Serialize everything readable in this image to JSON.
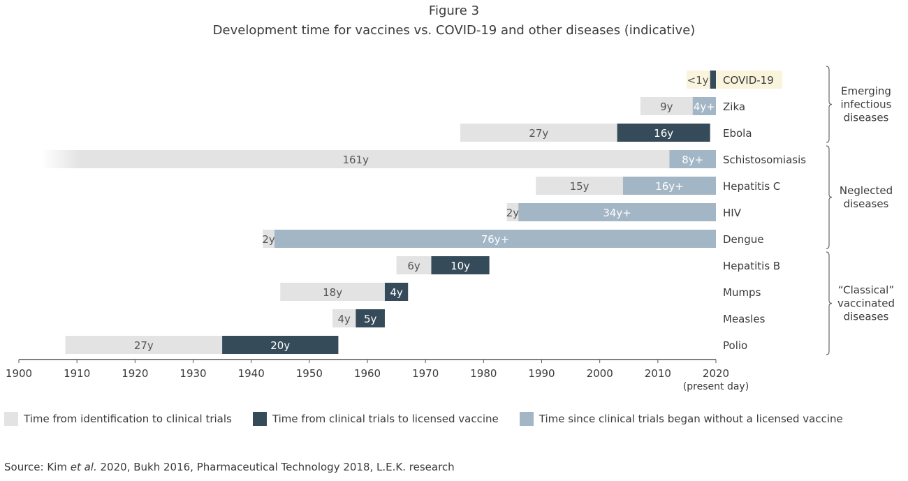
{
  "figure_label": "Figure 3",
  "chart_data": {
    "type": "bar",
    "orientation": "horizontal-stacked-timeline",
    "title": "Development time for vaccines vs. COVID-19 and other diseases (indicative)",
    "xlim": [
      1900,
      2020
    ],
    "xticks": [
      1900,
      1910,
      1920,
      1930,
      1940,
      1950,
      1960,
      1970,
      1980,
      1990,
      2000,
      2010,
      2020
    ],
    "xtick_note": "(present day)",
    "grid": false,
    "colors": {
      "identification": "#e3e3e3",
      "clinical": "#354b5a",
      "ongoing": "#a3b6c6",
      "highlight": "#fbf4dc"
    },
    "rows": [
      {
        "disease": "COVID-19",
        "highlight": true,
        "segments": [
          {
            "kind": "clinical",
            "start": 2019,
            "end": 2020,
            "label": "<1y"
          }
        ]
      },
      {
        "disease": "Zika",
        "segments": [
          {
            "kind": "identification",
            "start": 2007,
            "end": 2016,
            "label": "9y"
          },
          {
            "kind": "ongoing",
            "start": 2016,
            "end": 2020,
            "label": "4y+"
          }
        ]
      },
      {
        "disease": "Ebola",
        "segments": [
          {
            "kind": "identification",
            "start": 1976,
            "end": 2003,
            "label": "27y"
          },
          {
            "kind": "clinical",
            "start": 2003,
            "end": 2019,
            "label": "16y"
          }
        ]
      },
      {
        "disease": "Schistosomiasis",
        "segments": [
          {
            "kind": "identification",
            "start": 1851,
            "end": 2012,
            "label": "161y"
          },
          {
            "kind": "ongoing",
            "start": 2012,
            "end": 2020,
            "label": "8y+"
          }
        ]
      },
      {
        "disease": "Hepatitis C",
        "segments": [
          {
            "kind": "identification",
            "start": 1989,
            "end": 2004,
            "label": "15y"
          },
          {
            "kind": "ongoing",
            "start": 2004,
            "end": 2020,
            "label": "16y+"
          }
        ]
      },
      {
        "disease": "HIV",
        "segments": [
          {
            "kind": "identification",
            "start": 1984,
            "end": 1986,
            "label": "2y"
          },
          {
            "kind": "ongoing",
            "start": 1986,
            "end": 2020,
            "label": "34y+"
          }
        ]
      },
      {
        "disease": "Dengue",
        "segments": [
          {
            "kind": "identification",
            "start": 1942,
            "end": 1944,
            "label": "2y"
          },
          {
            "kind": "ongoing",
            "start": 1944,
            "end": 2020,
            "label": "76y+"
          }
        ]
      },
      {
        "disease": "Hepatitis B",
        "segments": [
          {
            "kind": "identification",
            "start": 1965,
            "end": 1971,
            "label": "6y"
          },
          {
            "kind": "clinical",
            "start": 1971,
            "end": 1981,
            "label": "10y"
          }
        ]
      },
      {
        "disease": "Mumps",
        "segments": [
          {
            "kind": "identification",
            "start": 1945,
            "end": 1963,
            "label": "18y"
          },
          {
            "kind": "clinical",
            "start": 1963,
            "end": 1967,
            "label": "4y"
          }
        ]
      },
      {
        "disease": "Measles",
        "segments": [
          {
            "kind": "identification",
            "start": 1954,
            "end": 1958,
            "label": "4y"
          },
          {
            "kind": "clinical",
            "start": 1958,
            "end": 1963,
            "label": "5y"
          }
        ]
      },
      {
        "disease": "Polio",
        "segments": [
          {
            "kind": "identification",
            "start": 1908,
            "end": 1935,
            "label": "27y"
          },
          {
            "kind": "clinical",
            "start": 1935,
            "end": 1955,
            "label": "20y"
          }
        ]
      }
    ],
    "groups": [
      {
        "label": [
          "Emerging",
          "infectious",
          "diseases"
        ],
        "rows": [
          0,
          2
        ]
      },
      {
        "label": [
          "Neglected",
          "diseases"
        ],
        "rows": [
          3,
          6
        ]
      },
      {
        "label": [
          "“Classical”",
          "vaccinated",
          "diseases"
        ],
        "rows": [
          7,
          10
        ]
      }
    ],
    "legend": [
      {
        "kind": "identification",
        "label": "Time from identification to clinical trials"
      },
      {
        "kind": "clinical",
        "label": "Time from clinical trials to licensed vaccine"
      },
      {
        "kind": "ongoing",
        "label": "Time since clinical trials began without a licensed vaccine"
      }
    ]
  },
  "source": {
    "prefix": "Source: Kim ",
    "italic": "et al.",
    "suffix": " 2020, Bukh 2016, Pharmaceutical Technology 2018, L.E.K. research"
  }
}
